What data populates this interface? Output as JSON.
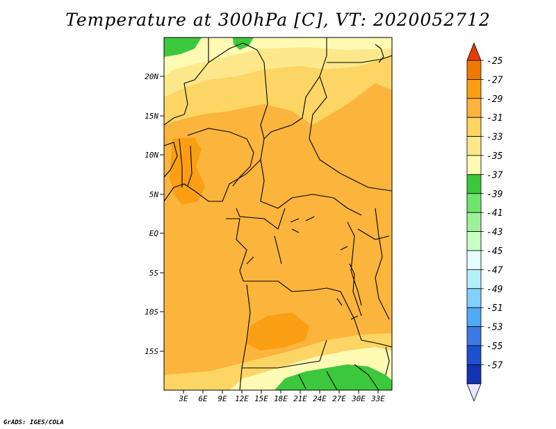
{
  "title": "Temperature at 300hPa [C], VT: 2020052712",
  "credit": "GrADS: IGES/COLA",
  "map": {
    "lon_range": [
      0,
      35
    ],
    "lat_range": [
      -20,
      25
    ],
    "lat_ticks": [
      "20N",
      "15N",
      "10N",
      "5N",
      "EQ",
      "5S",
      "10S",
      "15S"
    ],
    "lon_ticks": [
      "3E",
      "6E",
      "9E",
      "12E",
      "15E",
      "18E",
      "21E",
      "24E",
      "27E",
      "30E",
      "33E"
    ],
    "background_level": "-31"
  },
  "colorbar": {
    "levels": [
      "-25",
      "-27",
      "-29",
      "-31",
      "-33",
      "-35",
      "-37",
      "-39",
      "-41",
      "-43",
      "-45",
      "-47",
      "-49",
      "-51",
      "-53",
      "-55",
      "-57"
    ],
    "colors": [
      "#f07800",
      "#fa9f14",
      "#fbb43c",
      "#fcd564",
      "#fce88a",
      "#fffab4",
      "#3cc83c",
      "#6ee66e",
      "#a0f09b",
      "#c8ffc3",
      "#e6ffff",
      "#b4f0fa",
      "#82d2ff",
      "#50aaf5",
      "#3c78e6",
      "#1e50d2",
      "#1432b4",
      "#0a1e6e",
      "#e6e6ff"
    ]
  },
  "color_legend": {
    "hottest": "#e63c00"
  }
}
